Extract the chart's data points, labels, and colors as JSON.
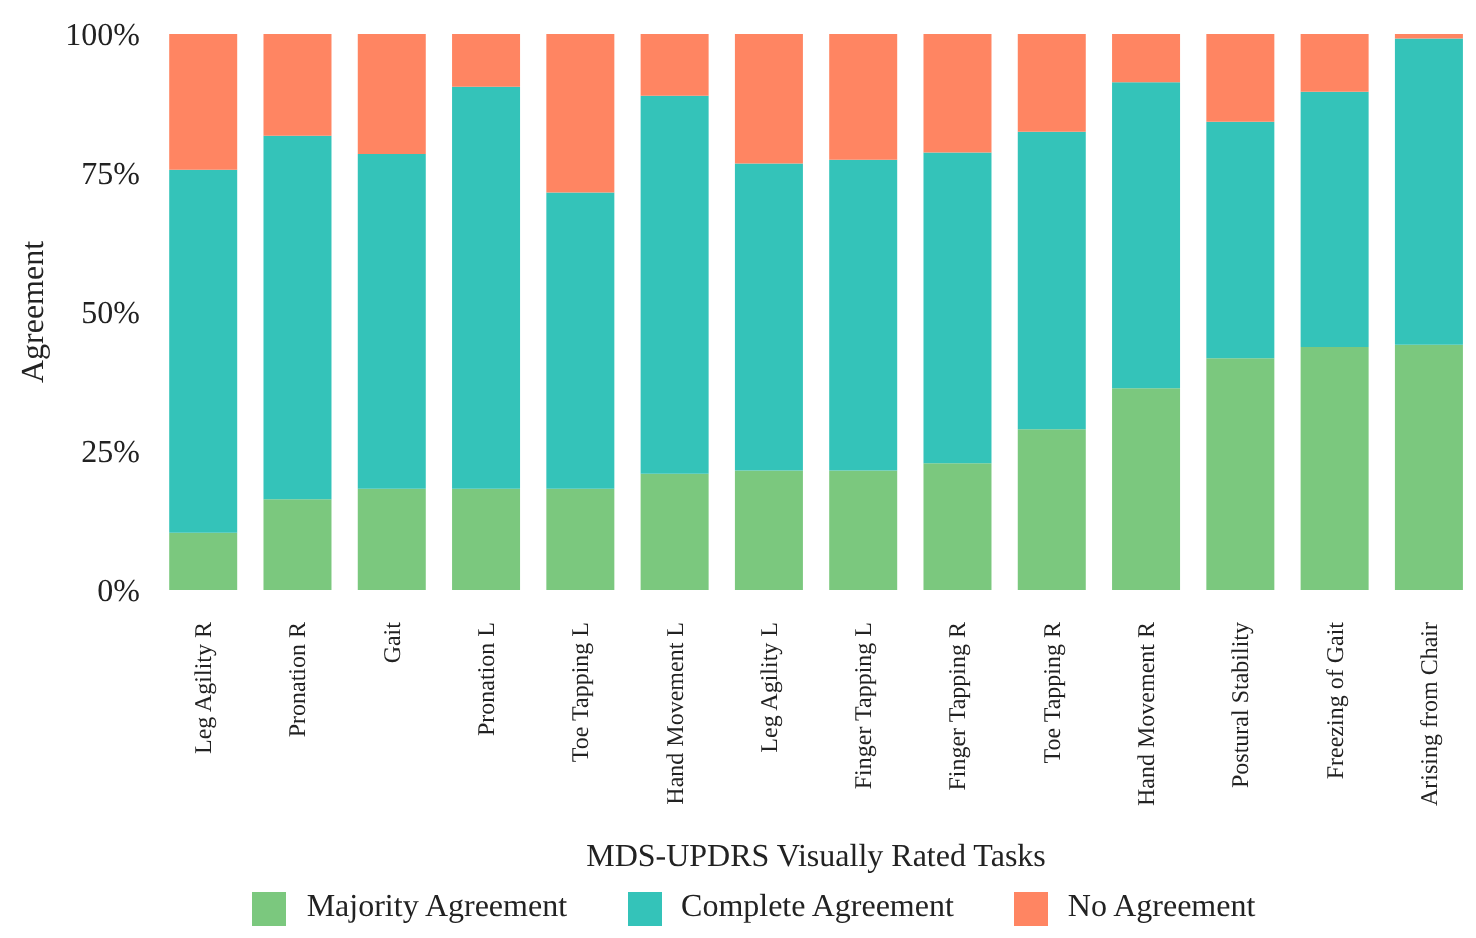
{
  "chart_data": {
    "type": "bar",
    "stacked": true,
    "xlabel": "MDS-UPDRS Visually Rated Tasks",
    "ylabel": "Agreement",
    "categories": [
      "Leg Agility R",
      "Pronation R",
      "Gait",
      "Pronation L",
      "Toe Tapping L",
      "Hand Movement L",
      "Leg Agility L",
      "Finger Tapping L",
      "Finger Tapping R",
      "Toe Tapping R",
      "Hand Movement R",
      "Postural Stability",
      "Freezing of Gait",
      "Arising from Chair"
    ],
    "series": [
      {
        "name": "Majority Agreement",
        "color": "#7bc87e",
        "values": [
          10.3,
          16.3,
          18.2,
          18.2,
          18.2,
          20.9,
          21.5,
          21.5,
          22.8,
          28.9,
          36.3,
          41.7,
          43.7,
          44.1
        ]
      },
      {
        "name": "Complete Agreement",
        "color": "#34c3b9",
        "values": [
          65.3,
          65.4,
          60.2,
          72.3,
          53.3,
          68.0,
          55.2,
          55.9,
          55.9,
          53.5,
          55.0,
          42.5,
          45.9,
          55.1
        ]
      },
      {
        "name": "No Agreement",
        "color": "#ff8562",
        "values": [
          24.4,
          18.3,
          21.6,
          9.5,
          28.5,
          11.1,
          23.3,
          22.6,
          21.3,
          17.6,
          8.7,
          15.8,
          10.4,
          0.8
        ]
      }
    ],
    "ylim": [
      0,
      100
    ],
    "yticks": [
      {
        "value": 0,
        "label": "0%"
      },
      {
        "value": 25,
        "label": "25%"
      },
      {
        "value": 50,
        "label": "50%"
      },
      {
        "value": 75,
        "label": "75%"
      },
      {
        "value": 100,
        "label": "100%"
      }
    ],
    "grid": false,
    "legend": "bottom"
  }
}
